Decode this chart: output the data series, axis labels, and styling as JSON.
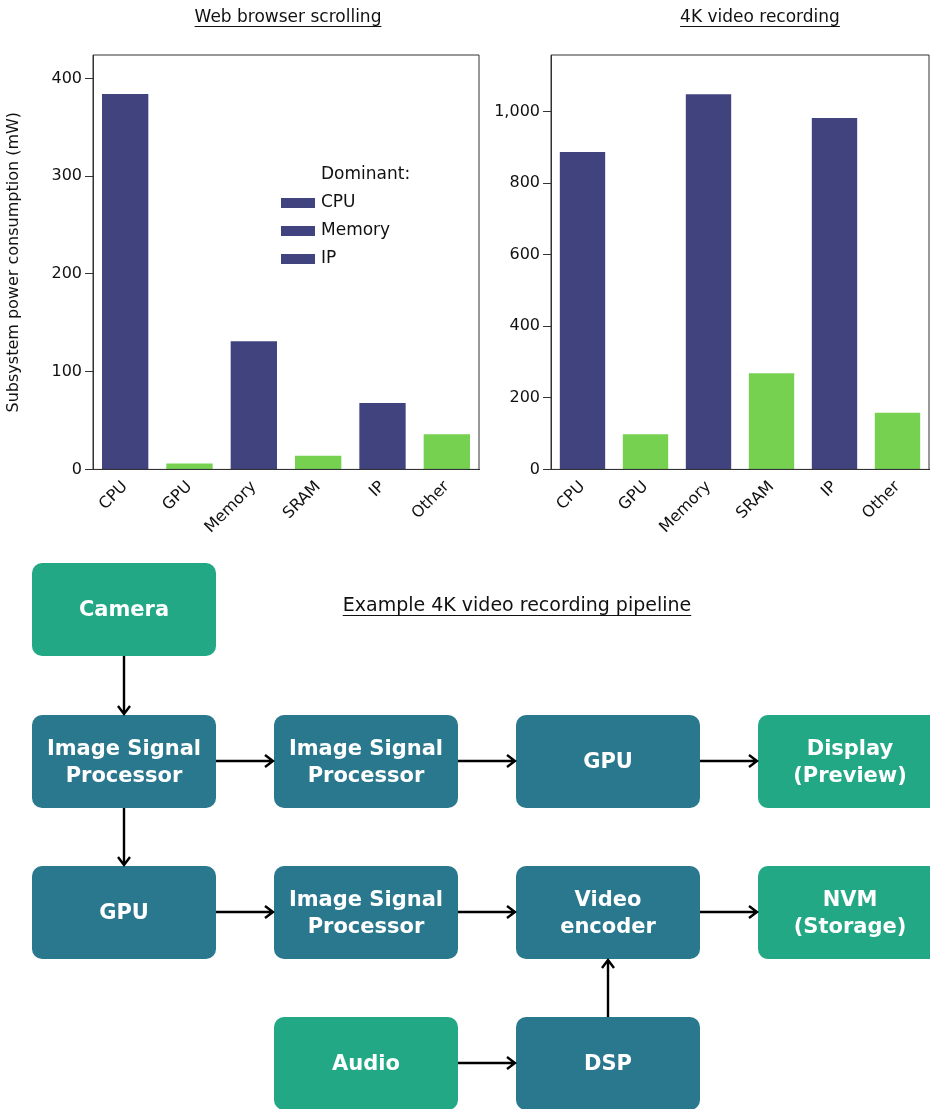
{
  "chart_data": [
    {
      "type": "bar",
      "title": "Web browser scrolling",
      "ylabel": "Subsystem power consumption (mW)",
      "legend_title": "Dominant:",
      "legend": "top right",
      "stacked": true,
      "categories": [
        "CPU",
        "GPU",
        "Memory",
        "SRAM",
        "IP",
        "Other"
      ],
      "series": [
        {
          "name": "CPU",
          "color": "#41437f",
          "values": [
            384,
            null,
            null,
            null,
            null,
            null
          ]
        },
        {
          "name": "Memory",
          "color": "#41437f",
          "values": [
            null,
            null,
            131,
            null,
            null,
            null
          ]
        },
        {
          "name": "IP",
          "color": "#41437f",
          "values": [
            null,
            null,
            null,
            null,
            68,
            null
          ]
        },
        {
          "color": "#76d151",
          "values": [
            null,
            6,
            null,
            14,
            null,
            36
          ]
        }
      ],
      "ylim": [
        0,
        424
      ],
      "yticks": [
        0,
        100,
        200,
        300,
        400
      ]
    },
    {
      "type": "bar",
      "title": "4K video recording",
      "stacked": true,
      "categories": [
        "CPU",
        "GPU",
        "Memory",
        "SRAM",
        "IP",
        "Other"
      ],
      "series": [
        {
          "color": "#41437f",
          "values": [
            887,
            null,
            1048,
            null,
            982,
            null
          ]
        },
        {
          "color": "#76d151",
          "values": [
            null,
            98,
            null,
            269,
            null,
            158
          ]
        }
      ],
      "ylim": [
        0,
        1158
      ],
      "yticks": [
        0,
        200,
        400,
        600,
        800,
        {
          "value": 1000,
          "label": "1,000"
        }
      ]
    },
    {
      "type": "other",
      "title": "Example 4K video recording pipeline",
      "annotations": [
        "Camera",
        "Image Signal Processor",
        "Image Signal Processor",
        "GPU",
        "Display (Preview)",
        "GPU",
        "Image Signal Processor",
        "Video encoder",
        "NVM (Storage)",
        "Audio",
        "DSP"
      ]
    }
  ]
}
